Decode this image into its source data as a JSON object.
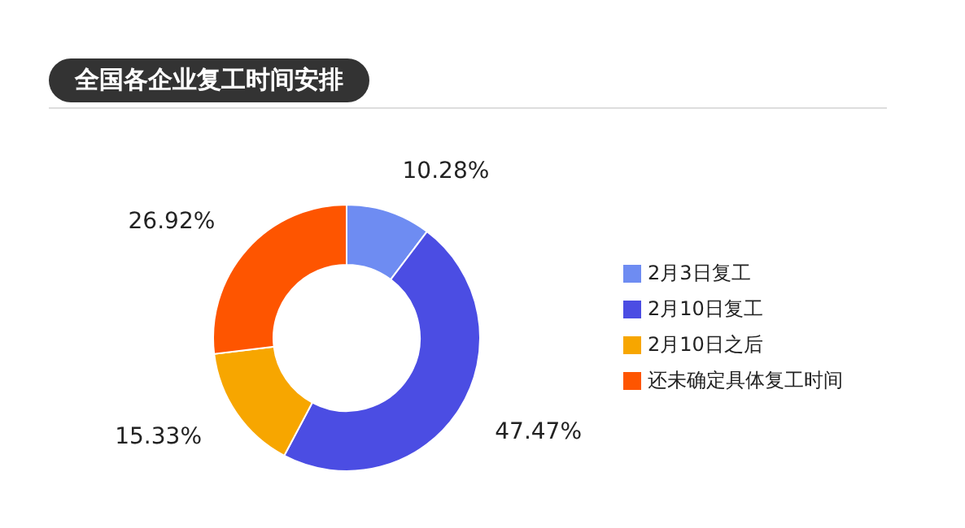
{
  "chart_data": {
    "type": "donut",
    "title": "全国各企业复工时间安排",
    "categories": [
      "2月3日复工",
      "2月10日复工",
      "2月10日之后",
      "还未确定具体复工时间"
    ],
    "values": [
      10.28,
      47.47,
      15.33,
      26.92
    ],
    "value_labels": [
      "10.28%",
      "47.47%",
      "15.33%",
      "26.92%"
    ],
    "colors": [
      "#6e8cf2",
      "#4b4de3",
      "#f7a600",
      "#fe5500"
    ],
    "legend": "right"
  }
}
